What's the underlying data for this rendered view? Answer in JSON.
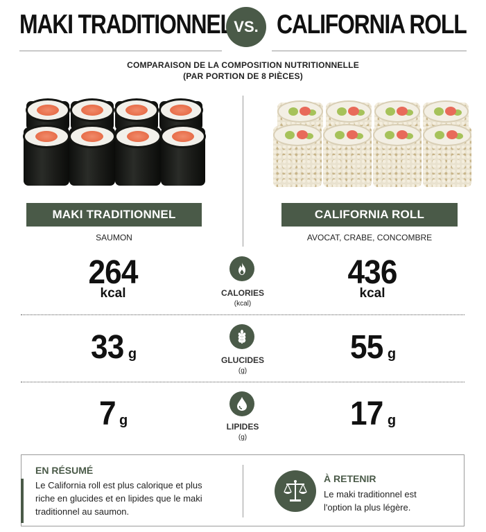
{
  "header": {
    "left_title": "MAKI TRADITIONNEL",
    "vs": "VS.",
    "right_title": "CALIFORNIA ROLL",
    "subtitle_line1": "COMPARAISON DE LA COMPOSITION NUTRITIONNELLE",
    "subtitle_line2": "(PAR PORTION DE 8 PIÈCES)"
  },
  "left": {
    "image": "maki-salmon-rolls-image",
    "label": "MAKI TRADITIONNEL",
    "ingredients": "SAUMON"
  },
  "right": {
    "image": "california-rolls-image",
    "label": "CALIFORNIA ROLL",
    "ingredients": "AVOCAT, CRABE, CONCOMBRE"
  },
  "stats": [
    {
      "icon": "flame-icon",
      "label": "CALORIES",
      "unit_label": "(kcal)",
      "left_value": "264",
      "left_unit": "kcal",
      "right_value": "436",
      "right_unit": "kcal"
    },
    {
      "icon": "wheat-icon",
      "label": "GLUCIDES",
      "unit_label": "(g)",
      "left_value": "33",
      "left_unit": "g",
      "right_value": "55",
      "right_unit": "g"
    },
    {
      "icon": "droplet-icon",
      "label": "LIPIDES",
      "unit_label": "(g)",
      "left_value": "7",
      "left_unit": "g",
      "right_value": "17",
      "right_unit": "g"
    }
  ],
  "summary": {
    "title": "EN RÉSUMÉ",
    "text": "Le California roll est plus calorique et plus riche en glucides et en lipides que le maki traditionnel au saumon.",
    "retain_icon": "scale-icon",
    "retain_title": "À RETENIR",
    "retain_text": "Le maki traditionnel est l'option la plus légère."
  },
  "colors": {
    "accent": "#4a5a48",
    "text": "#111111",
    "salmon": "#e4623c",
    "nori": "#151613"
  }
}
